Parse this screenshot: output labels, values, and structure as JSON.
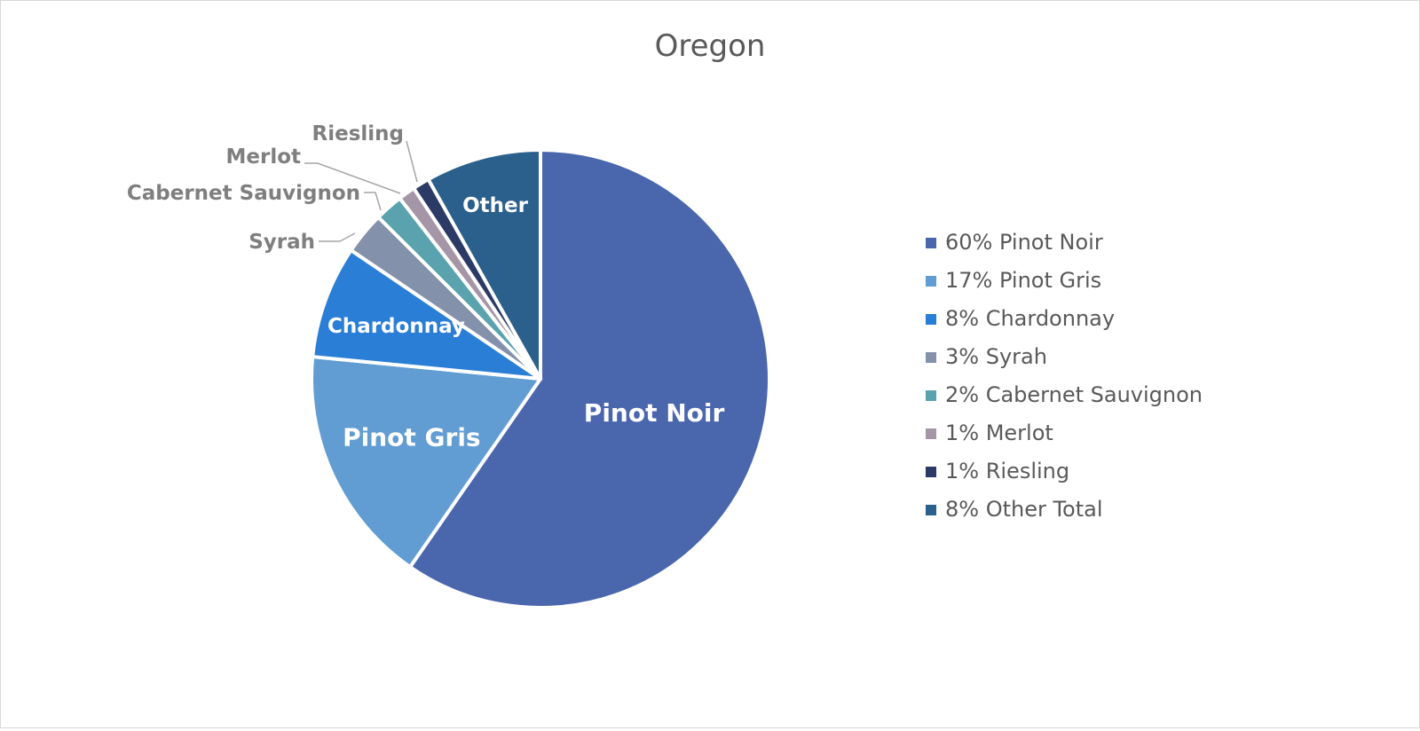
{
  "chart_data": {
    "type": "pie",
    "title": "Oregon",
    "slices": [
      {
        "label": "Pinot Noir",
        "legend": "60% Pinot Noir",
        "value": 60,
        "color": "#4a66ad"
      },
      {
        "label": "Pinot Gris",
        "legend": "17% Pinot Gris",
        "value": 17,
        "color": "#619dd2"
      },
      {
        "label": "Chardonnay",
        "legend": "8% Chardonnay",
        "value": 8,
        "color": "#2a7ed5"
      },
      {
        "label": "Syrah",
        "legend": "3% Syrah",
        "value": 3,
        "color": "#8491aa"
      },
      {
        "label": "Cabernet Sauvignon",
        "legend": "2% Cabernet Sauvignon",
        "value": 2,
        "color": "#5aa3ae"
      },
      {
        "label": "Merlot",
        "legend": "1% Merlot",
        "value": 1.2,
        "color": "#a495a7"
      },
      {
        "label": "Riesling",
        "legend": "1% Riesling",
        "value": 1.2,
        "color": "#2c3a66"
      },
      {
        "label": "Other",
        "legend": "8% Other Total",
        "value": 8.2,
        "color": "#2b5f8c"
      }
    ],
    "legend_position": "right"
  }
}
